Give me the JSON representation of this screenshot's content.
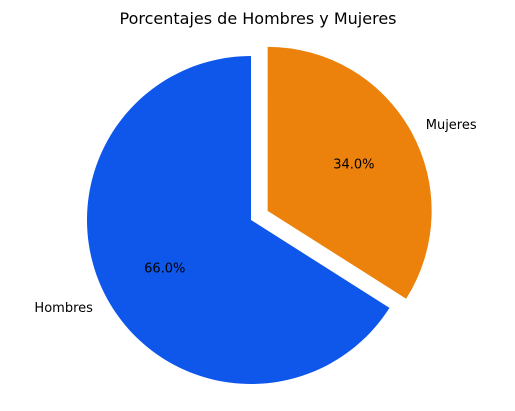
{
  "chart_data": {
    "type": "pie",
    "title": "Porcentajes de Hombres y Mujeres",
    "categories": [
      "Hombres",
      "Mujeres"
    ],
    "values": [
      66.0,
      34.0
    ],
    "percent_labels": [
      "66.0%",
      "34.0%"
    ],
    "colors": [
      "#0f56ea",
      "#ec810c"
    ],
    "exploded": [
      false,
      true
    ]
  }
}
